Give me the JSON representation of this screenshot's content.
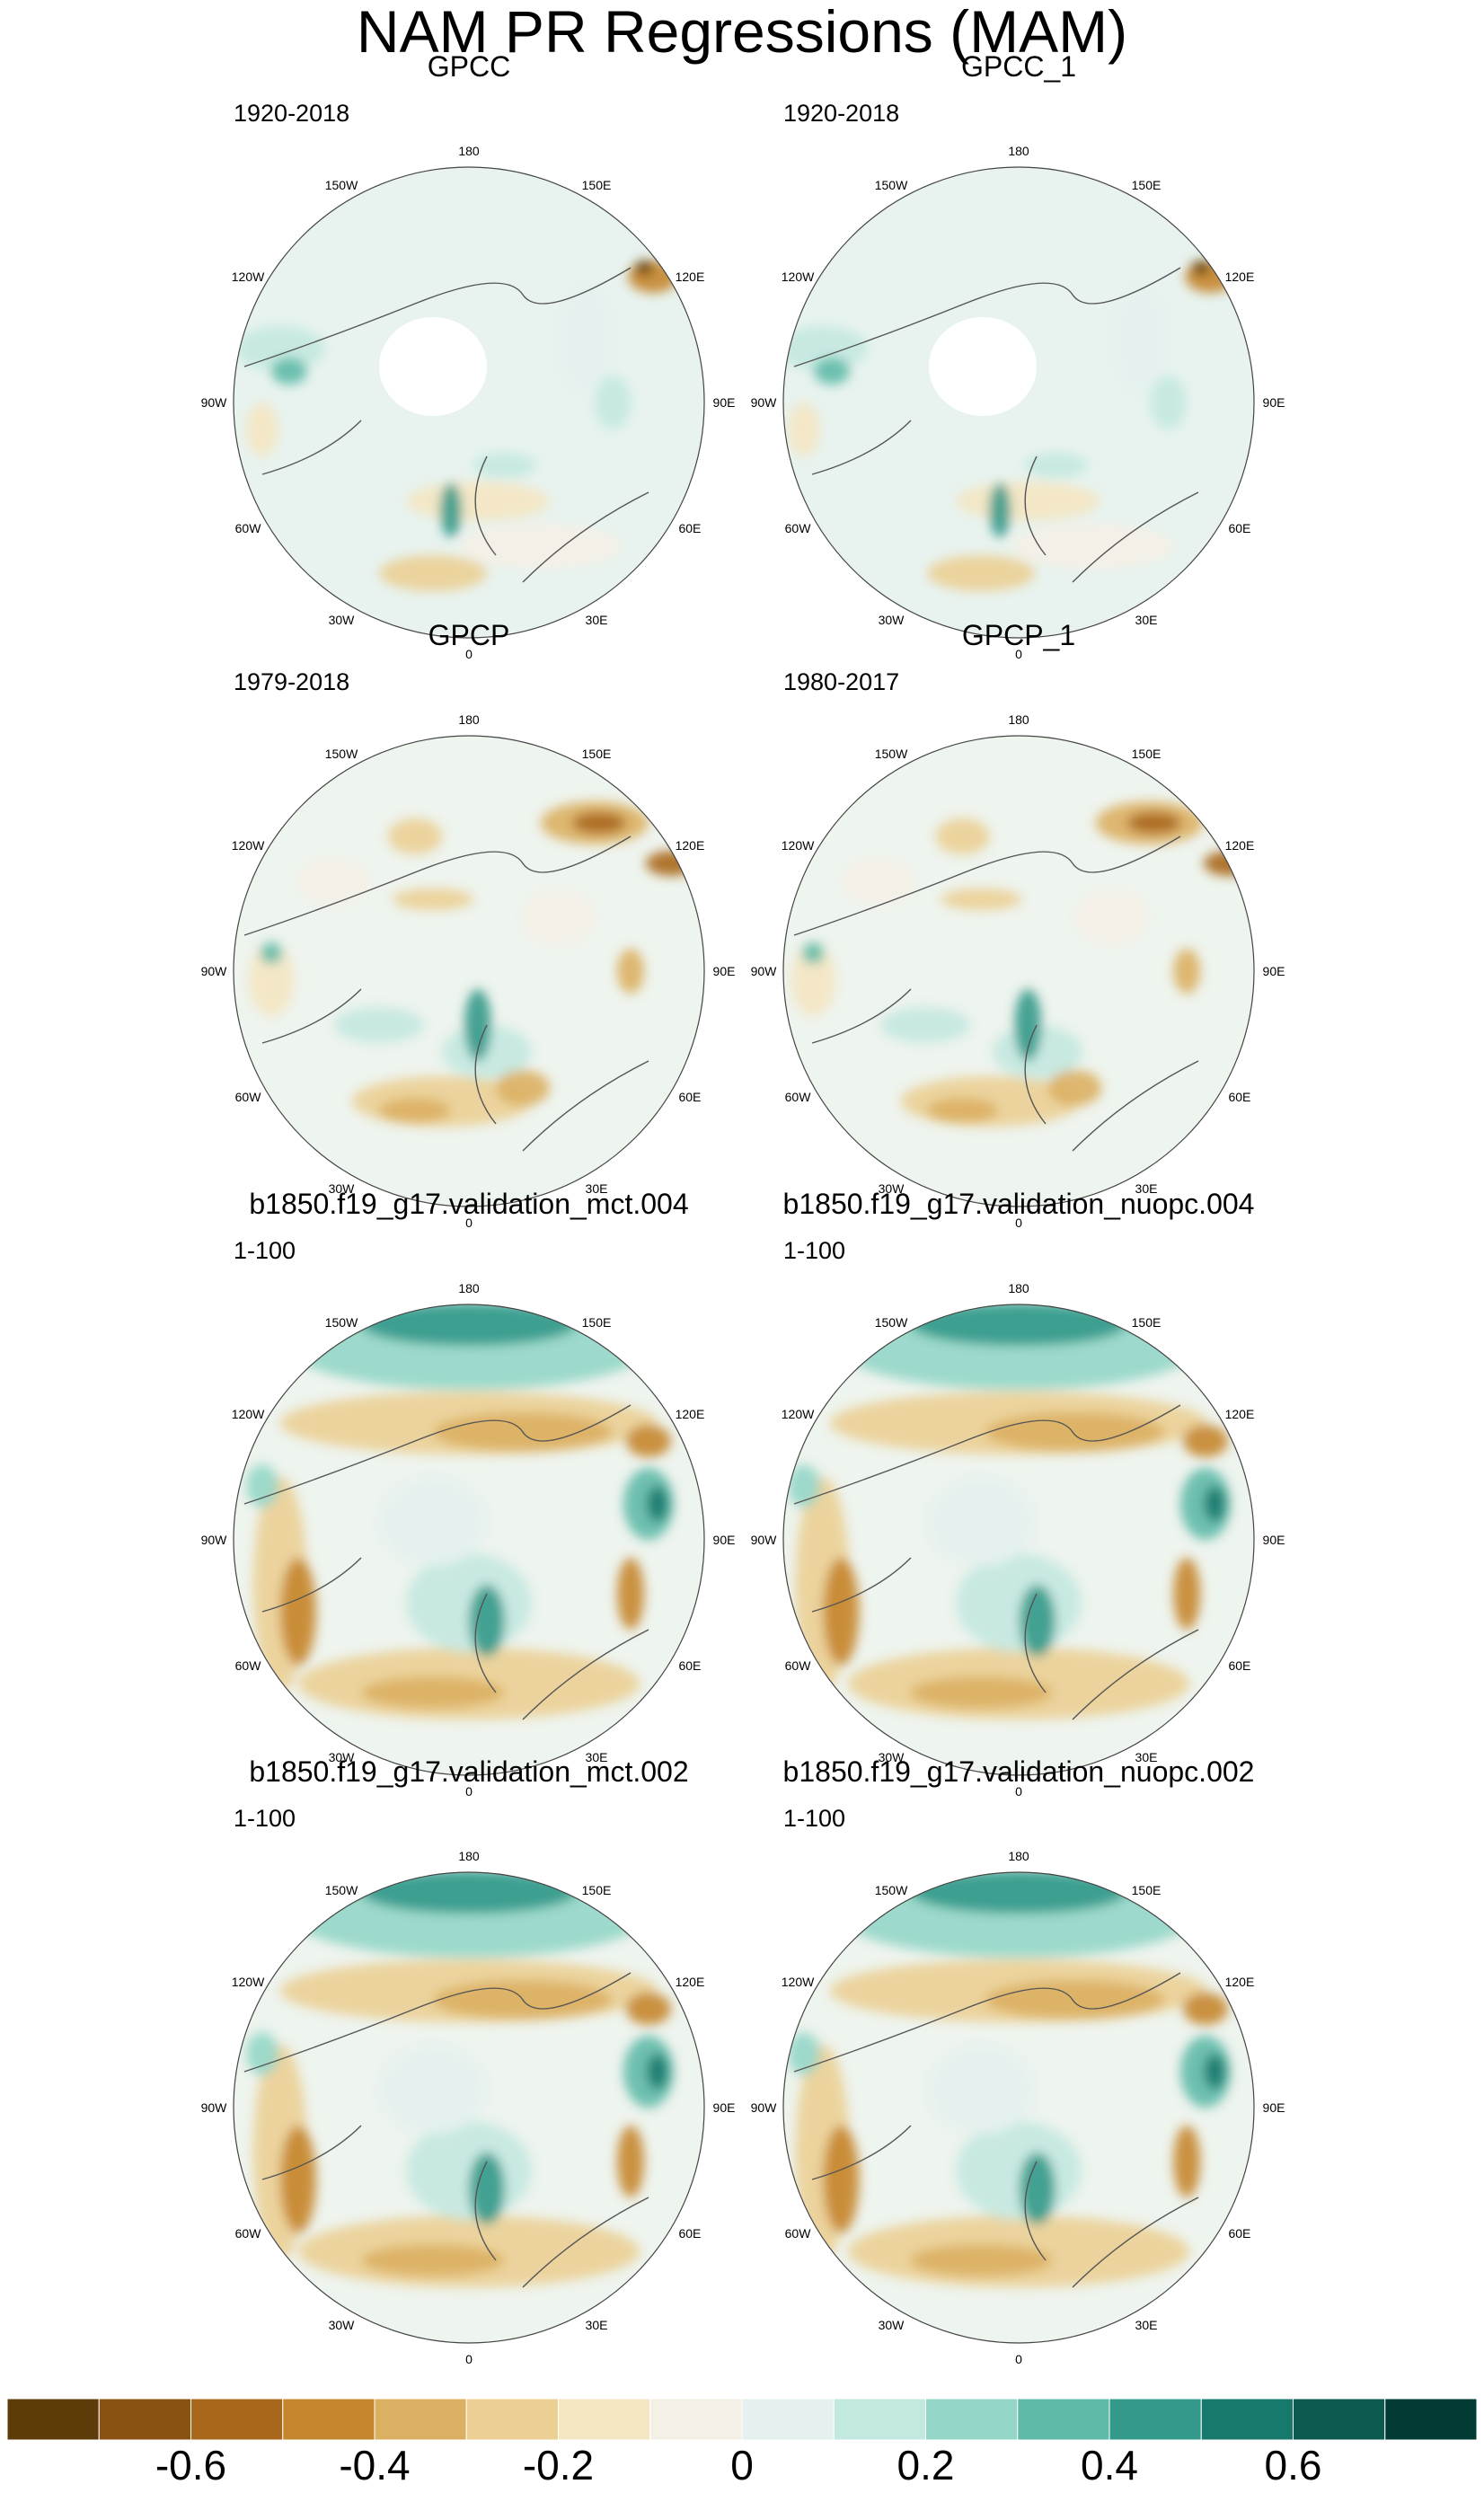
{
  "title": "NAM PR Regressions (MAM)",
  "longitude_labels": [
    "180",
    "150E",
    "120E",
    "90E",
    "60E",
    "30E",
    "0",
    "30W",
    "60W",
    "90W",
    "120W",
    "150W"
  ],
  "panels": [
    {
      "title": "GPCC",
      "period": "1920-2018",
      "pattern": "gpcc"
    },
    {
      "title": "GPCC_1",
      "period": "1920-2018",
      "pattern": "gpcc"
    },
    {
      "title": "GPCP",
      "period": "1979-2018",
      "pattern": "gpcp"
    },
    {
      "title": "GPCP_1",
      "period": "1980-2017",
      "pattern": "gpcp"
    },
    {
      "title": "b1850.f19_g17.validation_mct.004",
      "period": "1-100",
      "pattern": "model"
    },
    {
      "title": "b1850.f19_g17.validation_nuopc.004",
      "period": "1-100",
      "pattern": "model"
    },
    {
      "title": "b1850.f19_g17.validation_mct.002",
      "period": "1-100",
      "pattern": "model"
    },
    {
      "title": "b1850.f19_g17.validation_nuopc.002",
      "period": "1-100",
      "pattern": "model"
    }
  ],
  "colorbar": {
    "colors": [
      "#5e3c0a",
      "#8a5212",
      "#a9671b",
      "#c5862e",
      "#dcb063",
      "#ebcf93",
      "#f4e6c2",
      "#f5f0e6",
      "#e4f1ee",
      "#c3e8e0",
      "#94d6c8",
      "#5fbaa8",
      "#33998a",
      "#17786c",
      "#0b5a50",
      "#023b33"
    ],
    "tick_labels": [
      "-0.6",
      "-0.4",
      "-0.2",
      "0",
      "0.2",
      "0.4",
      "0.6"
    ],
    "tick_values": [
      -0.6,
      -0.4,
      -0.2,
      0,
      0.2,
      0.4,
      0.6
    ]
  }
}
